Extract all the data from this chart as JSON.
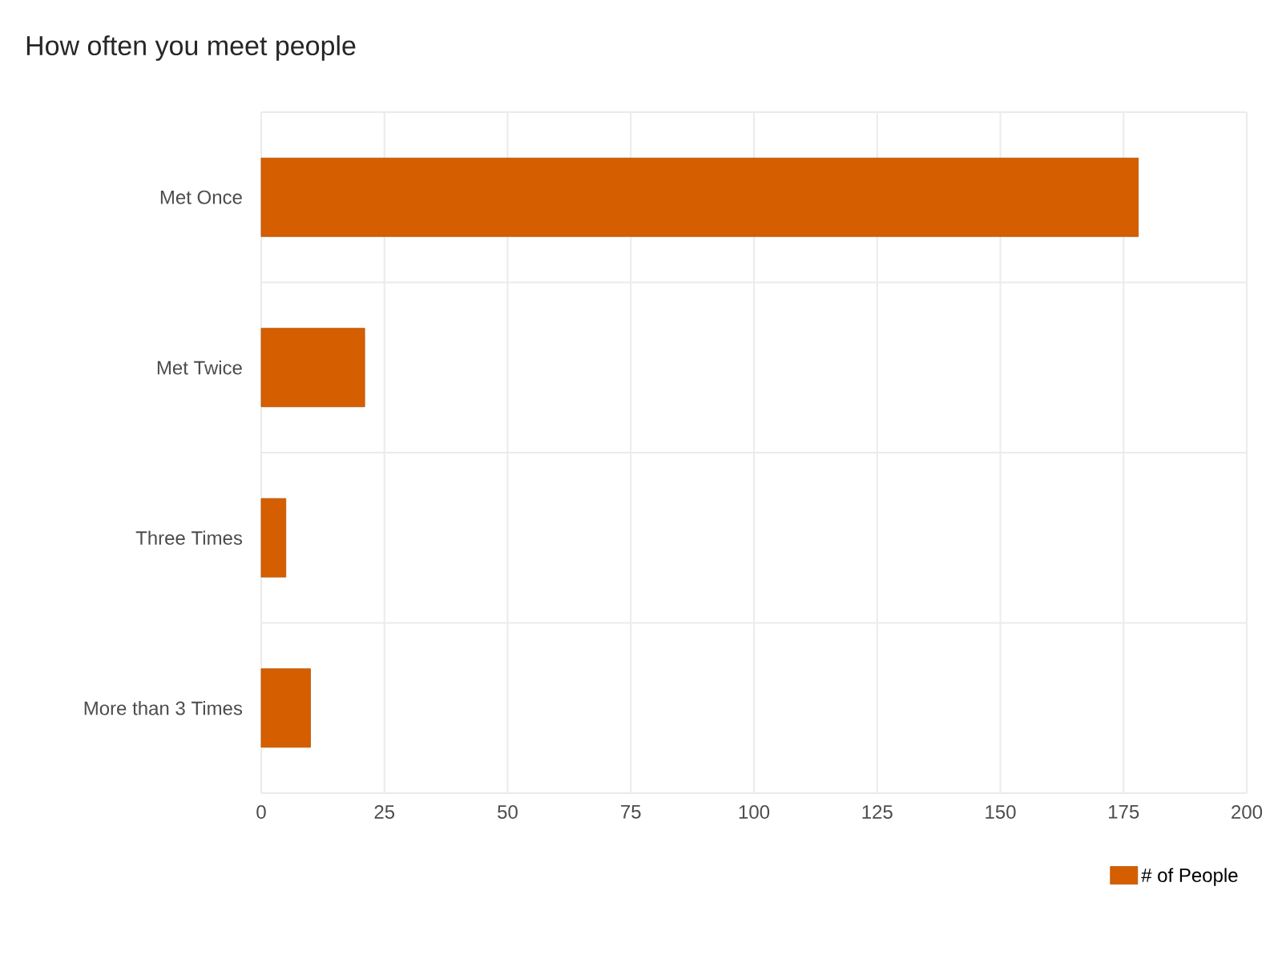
{
  "chart_data": {
    "type": "bar",
    "orientation": "horizontal",
    "title": "How often you meet people",
    "categories": [
      "Met Once",
      "Met Twice",
      "Three Times",
      "More than 3 Times"
    ],
    "series": [
      {
        "name": "# of People",
        "color": "#d55e00",
        "values": [
          178,
          21,
          5,
          10
        ]
      }
    ],
    "xlim": [
      0,
      200
    ],
    "xticks": [
      0,
      25,
      50,
      75,
      100,
      125,
      150,
      175,
      200
    ],
    "grid": true,
    "legend": "bottom right"
  }
}
